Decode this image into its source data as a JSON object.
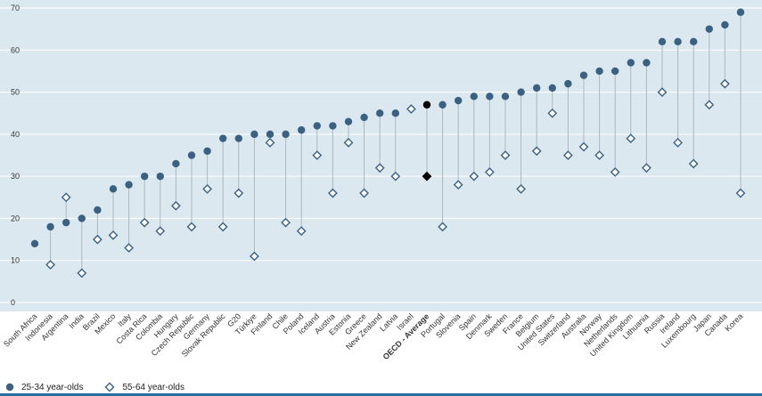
{
  "chart_data": {
    "type": "scatter",
    "subtype": "dot-range",
    "ylim": [
      0,
      70
    ],
    "yticks": [
      0,
      10,
      20,
      30,
      40,
      50,
      60,
      70
    ],
    "grid": true,
    "legend_position": "bottom-left",
    "categories": [
      "South Africa",
      "Indonesia",
      "Argentina",
      "India",
      "Brazil",
      "Mexico",
      "Italy",
      "Costa Rica",
      "Colombia",
      "Hungary",
      "Czech Republic",
      "Germany",
      "Slovak Republic",
      "G20",
      "Türkiye",
      "Finland",
      "Chile",
      "Poland",
      "Iceland",
      "Austria",
      "Estonia",
      "Greece",
      "New Zealand",
      "Latvia",
      "Israel",
      "OECD - Average",
      "Portugal",
      "Slovenia",
      "Spain",
      "Denmark",
      "Sweden",
      "France",
      "Belgium",
      "United States",
      "Switzerland",
      "Australia",
      "Norway",
      "Netherlands",
      "United Kingdom",
      "Lithuania",
      "Russia",
      "Ireland",
      "Luxembourg",
      "Japan",
      "Canada",
      "Korea"
    ],
    "highlight_category": "OECD - Average",
    "series": [
      {
        "name": "25-34 year-olds",
        "marker": "circle",
        "color": "#3b6182",
        "values": [
          14,
          18,
          19,
          20,
          22,
          27,
          28,
          30,
          30,
          33,
          35,
          36,
          39,
          39,
          40,
          40,
          40,
          41,
          42,
          42,
          43,
          44,
          45,
          45,
          null,
          47,
          47,
          48,
          49,
          49,
          49,
          50,
          51,
          51,
          52,
          54,
          55,
          55,
          57,
          57,
          62,
          62,
          62,
          65,
          66,
          69
        ]
      },
      {
        "name": "55-64 year-olds",
        "marker": "diamond",
        "color": "#3b6182",
        "values": [
          null,
          9,
          25,
          7,
          15,
          16,
          13,
          19,
          17,
          23,
          18,
          27,
          18,
          26,
          11,
          38,
          19,
          17,
          35,
          26,
          38,
          26,
          32,
          30,
          46,
          30,
          18,
          28,
          30,
          31,
          35,
          27,
          36,
          45,
          35,
          37,
          35,
          31,
          39,
          32,
          50,
          38,
          33,
          47,
          52,
          26
        ]
      }
    ]
  },
  "legend": {
    "series1_label": "25-34 year-olds",
    "series2_label": "55-64 year-olds"
  }
}
